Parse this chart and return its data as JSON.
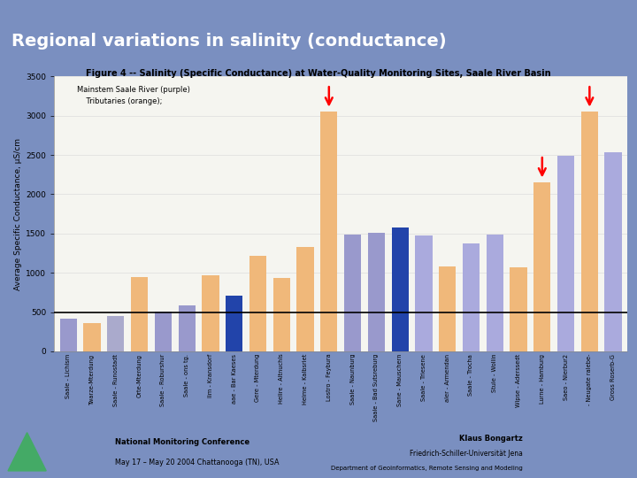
{
  "title_slide": "Regional variations in salinity (conductance)",
  "figure_title": "Figure 4 -- Salinity (Specific Conductance) at Water-Quality Monitoring Sites, Saale River Basin",
  "ylabel": "Average Specific Conductance, µS/cm",
  "legend_text": "Mainstem Saale River (purple)\n    Tributaries (orange);",
  "hline_value": 500,
  "ymax": 3500,
  "yticks": [
    0,
    500,
    1000,
    1500,
    2000,
    2500,
    3000,
    3500
  ],
  "bars": [
    {
      "label": "Saale - Lichism",
      "value": 420,
      "color": "#9999cc"
    },
    {
      "label": "Twarze-Mterdung",
      "value": 365,
      "color": "#f0b87a"
    },
    {
      "label": "Saale - Runostadt",
      "value": 450,
      "color": "#aaaacc"
    },
    {
      "label": "Orte-Mterdung",
      "value": 950,
      "color": "#f0b87a"
    },
    {
      "label": "Saale - Roburshur",
      "value": 510,
      "color": "#9999cc"
    },
    {
      "label": "Saale - ons tg.",
      "value": 590,
      "color": "#9999cc"
    },
    {
      "label": "Ilm - Kransdorf",
      "value": 970,
      "color": "#f0b87a"
    },
    {
      "label": "aae - Bar Kaeses",
      "value": 710,
      "color": "#2244aa"
    },
    {
      "label": "Gere - Mterdung",
      "value": 1220,
      "color": "#f0b87a"
    },
    {
      "label": "Helire - Altnuchls",
      "value": 930,
      "color": "#f0b87a"
    },
    {
      "label": "Helme - Kalbsriet",
      "value": 1330,
      "color": "#f0b87a"
    },
    {
      "label": "Lostro - Feybura",
      "value": 3050,
      "color": "#f0b87a"
    },
    {
      "label": "Saale - Naunburg",
      "value": 1490,
      "color": "#9999cc"
    },
    {
      "label": "Saale - Bad Sutsreburg",
      "value": 1510,
      "color": "#9999cc"
    },
    {
      "label": "Sane - Mauschern",
      "value": 1580,
      "color": "#2244aa"
    },
    {
      "label": "Saale - Triesene",
      "value": 1470,
      "color": "#aaaadd"
    },
    {
      "label": "aler - Armendan",
      "value": 1080,
      "color": "#f0b87a"
    },
    {
      "label": "Saale - Trocha",
      "value": 1370,
      "color": "#aaaadd"
    },
    {
      "label": "Stule - Wollin",
      "value": 1490,
      "color": "#aaaadd"
    },
    {
      "label": "Wipse - Aderssedt",
      "value": 1070,
      "color": "#f0b87a"
    },
    {
      "label": "Lurne - Hamburg",
      "value": 2150,
      "color": "#f0b87a"
    },
    {
      "label": "Saeo - Nierbur2",
      "value": 2490,
      "color": "#aaaadd"
    },
    {
      "label": "- Neugate ralebe-",
      "value": 3050,
      "color": "#f0b87a"
    },
    {
      "label": "Gross Roserb-G",
      "value": 2530,
      "color": "#aaaadd"
    }
  ],
  "arrows": [
    {
      "bar_idx": 11
    },
    {
      "bar_idx": 20
    },
    {
      "bar_idx": 22
    }
  ],
  "slide_bg": "#7a8fc0",
  "chart_bg": "#ffffff",
  "plot_bg": "#f5f5f0",
  "slide_title_color": "#ffffff",
  "footer_bg": "#4455aa",
  "footer_text_color": "#ffffff"
}
